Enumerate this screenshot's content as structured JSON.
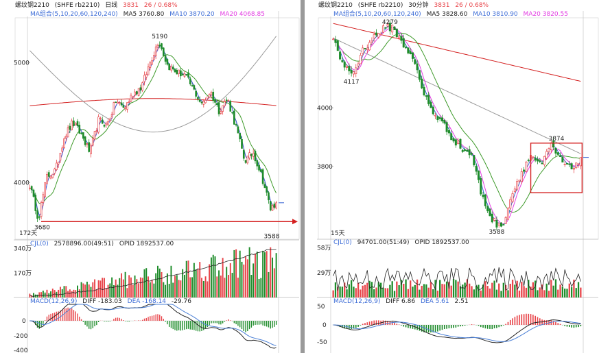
{
  "colors": {
    "up": "#e8454a",
    "down": "#1e8c2a",
    "ma5": "#303030",
    "ma10": "#3b6bd6",
    "ma20": "#e23ae2",
    "ma60": "#3e9a2a",
    "ma120": "#9a9a9a",
    "ma240": "#d42020",
    "macd_diff": "#222222",
    "macd_dea": "#4a7fd6",
    "axis_text": "#222222"
  },
  "panels": [
    {
      "header": {
        "symbol": "螺纹钢2210",
        "exchange_code": "(SHFE rb2210)",
        "period": "日线",
        "last_price": "3831",
        "change": "26 / 0.68%"
      },
      "ma_legend": {
        "label": "MA组合(5,10,20,60,120,240)",
        "ma5": "MA5 3760.80",
        "ma10": "MA10 3870.20",
        "ma20": "MA20 4068.85"
      },
      "price_ticks": [
        "5000",
        "4000"
      ],
      "annotations": {
        "high": "5190",
        "low_left": "3680",
        "low_right": "3588",
        "days": "172天"
      },
      "volume": {
        "label": "CJL(0)",
        "value": "2578896.00(49:51)",
        "opid": "OPID 1892537.00",
        "ticks": [
          "340万",
          "170万"
        ]
      },
      "macd": {
        "label": "MACD(12,26,9)",
        "diff": "DIFF -183.03",
        "dea": "DEA -168.14",
        "macd": "-29.76",
        "ticks": [
          "0",
          "-200",
          "-400"
        ]
      },
      "chart_data": {
        "type": "candlestick",
        "period": "日线",
        "ylim": [
          3550,
          5350
        ],
        "annotated_high": 5190,
        "annotated_lows": [
          3680,
          3588
        ],
        "last_price": 3831,
        "series": [
          {
            "name": "MA5",
            "last": 3760.8
          },
          {
            "name": "MA10",
            "last": 3870.2
          },
          {
            "name": "MA20",
            "last": 4068.85
          }
        ],
        "close_path_x": [
          0,
          6,
          12,
          18,
          24,
          30,
          36,
          42,
          48,
          54,
          60,
          66,
          72,
          78,
          84,
          90,
          96,
          102,
          108,
          114,
          120,
          126,
          132,
          138,
          144,
          150,
          156,
          162,
          168,
          172
        ],
        "close_path_y": [
          3980,
          3700,
          4050,
          4100,
          4380,
          4500,
          4400,
          4250,
          4520,
          4480,
          4680,
          4620,
          4740,
          4800,
          5000,
          5190,
          4980,
          4920,
          4900,
          4780,
          4650,
          4760,
          4600,
          4700,
          4460,
          4180,
          4250,
          4050,
          3780,
          3831
        ]
      }
    },
    {
      "header": {
        "symbol": "螺纹钢2210",
        "exchange_code": "(SHFE rb2210)",
        "period": "30分钟",
        "last_price": "3831",
        "change": "26 / 0.68%"
      },
      "ma_legend": {
        "label": "MA组合(5,10,20,60,120,240)",
        "ma5": "MA5 3828.60",
        "ma10": "MA10 3810.90",
        "ma20": "MA20 3820.55"
      },
      "price_ticks": [
        "4000",
        "3800"
      ],
      "annotations": {
        "high": "4279",
        "low_left": "4117",
        "low_right": "3588",
        "box_high": "3874",
        "days": "15天"
      },
      "volume": {
        "label": "CJL(0)",
        "value": "94701.00(51:49)",
        "opid": "OPID 1892537.00",
        "ticks": [
          "58万",
          "29万"
        ]
      },
      "macd": {
        "label": "MACD(12,26,9)",
        "diff": "DIFF 6.86",
        "dea": "DEA 5.61",
        "macd": "2.51",
        "ticks": [
          "50",
          "0",
          "-50"
        ]
      },
      "chart_data": {
        "type": "candlestick",
        "period": "30分钟",
        "ylim": [
          3560,
          4300
        ],
        "annotated_highs": [
          4279,
          3874
        ],
        "annotated_lows": [
          4117,
          3588
        ],
        "last_price": 3831,
        "series": [
          {
            "name": "MA5",
            "last": 3828.6
          },
          {
            "name": "MA10",
            "last": 3810.9
          },
          {
            "name": "MA20",
            "last": 3820.55
          }
        ],
        "close_path_x": [
          0,
          6,
          12,
          18,
          24,
          30,
          36,
          42,
          48,
          54,
          60,
          66,
          72,
          78,
          84,
          90,
          96,
          102,
          108,
          114,
          120,
          126,
          132,
          138,
          144,
          150
        ],
        "close_path_y": [
          4230,
          4150,
          4117,
          4200,
          4240,
          4270,
          4279,
          4220,
          4180,
          4060,
          3990,
          3950,
          3900,
          3860,
          3840,
          3700,
          3620,
          3588,
          3700,
          3780,
          3840,
          3800,
          3874,
          3820,
          3790,
          3831
        ]
      }
    }
  ]
}
